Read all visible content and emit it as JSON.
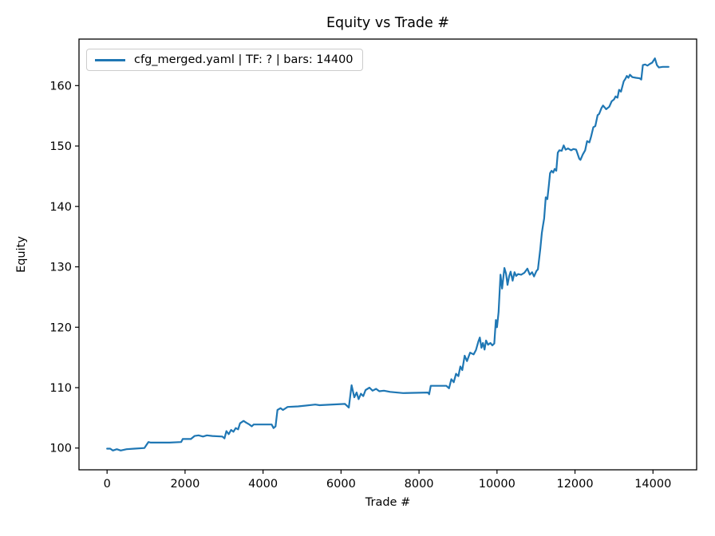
{
  "figure": {
    "title": "Equity vs Trade #"
  },
  "chart_data": {
    "type": "line",
    "title": "Equity vs Trade #",
    "xlabel": "Trade #",
    "ylabel": "Equity",
    "xlim": [
      -720,
      15120
    ],
    "ylim": [
      96.4,
      167.7
    ],
    "xticks": [
      0,
      2000,
      4000,
      6000,
      8000,
      10000,
      12000,
      14000
    ],
    "yticks": [
      100,
      110,
      120,
      130,
      140,
      150,
      160
    ],
    "grid": false,
    "legend_position": "upper-left",
    "series": [
      {
        "name": "cfg_merged.yaml | TF: ? | bars: 14400",
        "color": "#1f77b4",
        "points": [
          [
            0,
            99.9
          ],
          [
            80,
            99.9
          ],
          [
            150,
            99.6
          ],
          [
            250,
            99.8
          ],
          [
            350,
            99.6
          ],
          [
            500,
            99.8
          ],
          [
            700,
            99.9
          ],
          [
            958,
            100.0
          ],
          [
            1010,
            100.5
          ],
          [
            1060,
            101.0
          ],
          [
            1120,
            100.9
          ],
          [
            1600,
            100.9
          ],
          [
            1900,
            101.0
          ],
          [
            1940,
            101.5
          ],
          [
            2150,
            101.5
          ],
          [
            2243,
            102.0
          ],
          [
            2345,
            102.1
          ],
          [
            2460,
            101.9
          ],
          [
            2560,
            102.1
          ],
          [
            2700,
            102.0
          ],
          [
            2956,
            101.9
          ],
          [
            3010,
            101.6
          ],
          [
            3060,
            102.8
          ],
          [
            3120,
            102.3
          ],
          [
            3180,
            103.0
          ],
          [
            3240,
            102.7
          ],
          [
            3300,
            103.3
          ],
          [
            3360,
            103.1
          ],
          [
            3410,
            104.1
          ],
          [
            3500,
            104.5
          ],
          [
            3570,
            104.2
          ],
          [
            3650,
            103.9
          ],
          [
            3710,
            103.6
          ],
          [
            3760,
            103.9
          ],
          [
            4220,
            103.9
          ],
          [
            4270,
            103.3
          ],
          [
            4320,
            103.6
          ],
          [
            4370,
            106.3
          ],
          [
            4450,
            106.6
          ],
          [
            4510,
            106.3
          ],
          [
            4630,
            106.8
          ],
          [
            4900,
            106.9
          ],
          [
            5340,
            107.2
          ],
          [
            5450,
            107.1
          ],
          [
            6100,
            107.3
          ],
          [
            6200,
            106.7
          ],
          [
            6270,
            110.4
          ],
          [
            6340,
            108.4
          ],
          [
            6400,
            109.2
          ],
          [
            6450,
            108.1
          ],
          [
            6510,
            109.0
          ],
          [
            6570,
            108.6
          ],
          [
            6630,
            109.6
          ],
          [
            6730,
            110.0
          ],
          [
            6810,
            109.5
          ],
          [
            6900,
            109.8
          ],
          [
            6980,
            109.4
          ],
          [
            7100,
            109.5
          ],
          [
            7260,
            109.3
          ],
          [
            7590,
            109.1
          ],
          [
            8230,
            109.2
          ],
          [
            8260,
            108.9
          ],
          [
            8300,
            110.3
          ],
          [
            8700,
            110.3
          ],
          [
            8770,
            109.9
          ],
          [
            8830,
            111.4
          ],
          [
            8890,
            110.9
          ],
          [
            8950,
            112.3
          ],
          [
            9010,
            111.9
          ],
          [
            9060,
            113.5
          ],
          [
            9110,
            112.9
          ],
          [
            9170,
            115.3
          ],
          [
            9230,
            114.4
          ],
          [
            9310,
            115.8
          ],
          [
            9400,
            115.5
          ],
          [
            9460,
            116.2
          ],
          [
            9520,
            117.6
          ],
          [
            9560,
            118.3
          ],
          [
            9600,
            116.6
          ],
          [
            9640,
            117.4
          ],
          [
            9680,
            116.3
          ],
          [
            9720,
            117.8
          ],
          [
            9770,
            117.1
          ],
          [
            9830,
            117.4
          ],
          [
            9880,
            117.0
          ],
          [
            9930,
            117.3
          ],
          [
            9970,
            121.2
          ],
          [
            10000,
            120.0
          ],
          [
            10040,
            122.5
          ],
          [
            10070,
            126.1
          ],
          [
            10090,
            128.7
          ],
          [
            10130,
            126.4
          ],
          [
            10190,
            129.8
          ],
          [
            10230,
            128.9
          ],
          [
            10270,
            127.0
          ],
          [
            10310,
            128.4
          ],
          [
            10350,
            129.2
          ],
          [
            10400,
            127.7
          ],
          [
            10450,
            129.1
          ],
          [
            10490,
            128.5
          ],
          [
            10540,
            128.8
          ],
          [
            10620,
            128.7
          ],
          [
            10700,
            129.0
          ],
          [
            10780,
            129.7
          ],
          [
            10840,
            128.7
          ],
          [
            10900,
            129.1
          ],
          [
            10950,
            128.4
          ],
          [
            11010,
            129.3
          ],
          [
            11050,
            129.6
          ],
          [
            11110,
            133.0
          ],
          [
            11150,
            135.6
          ],
          [
            11180,
            136.9
          ],
          [
            11210,
            138.0
          ],
          [
            11250,
            141.5
          ],
          [
            11290,
            141.2
          ],
          [
            11330,
            143.5
          ],
          [
            11360,
            145.5
          ],
          [
            11400,
            145.9
          ],
          [
            11440,
            145.6
          ],
          [
            11480,
            146.2
          ],
          [
            11520,
            145.9
          ],
          [
            11560,
            148.9
          ],
          [
            11600,
            149.3
          ],
          [
            11660,
            149.2
          ],
          [
            11710,
            150.1
          ],
          [
            11760,
            149.4
          ],
          [
            11820,
            149.6
          ],
          [
            11900,
            149.3
          ],
          [
            11960,
            149.5
          ],
          [
            12030,
            149.4
          ],
          [
            12110,
            147.9
          ],
          [
            12140,
            147.7
          ],
          [
            12200,
            148.6
          ],
          [
            12260,
            149.3
          ],
          [
            12310,
            150.8
          ],
          [
            12370,
            150.6
          ],
          [
            12410,
            151.5
          ],
          [
            12470,
            153.1
          ],
          [
            12520,
            153.3
          ],
          [
            12580,
            155.1
          ],
          [
            12620,
            155.3
          ],
          [
            12680,
            156.3
          ],
          [
            12720,
            156.7
          ],
          [
            12760,
            156.4
          ],
          [
            12800,
            156.1
          ],
          [
            12880,
            156.5
          ],
          [
            12940,
            157.4
          ],
          [
            13000,
            157.7
          ],
          [
            13040,
            158.2
          ],
          [
            13090,
            158.0
          ],
          [
            13130,
            159.3
          ],
          [
            13180,
            159.0
          ],
          [
            13250,
            160.7
          ],
          [
            13290,
            161.1
          ],
          [
            13330,
            161.6
          ],
          [
            13370,
            161.3
          ],
          [
            13410,
            161.8
          ],
          [
            13470,
            161.4
          ],
          [
            13560,
            161.3
          ],
          [
            13660,
            161.2
          ],
          [
            13700,
            161.0
          ],
          [
            13740,
            163.4
          ],
          [
            13800,
            163.5
          ],
          [
            13860,
            163.3
          ],
          [
            13920,
            163.6
          ],
          [
            13980,
            163.8
          ],
          [
            14050,
            164.5
          ],
          [
            14100,
            163.4
          ],
          [
            14150,
            163.0
          ],
          [
            14250,
            163.1
          ],
          [
            14400,
            163.1
          ]
        ]
      }
    ]
  }
}
